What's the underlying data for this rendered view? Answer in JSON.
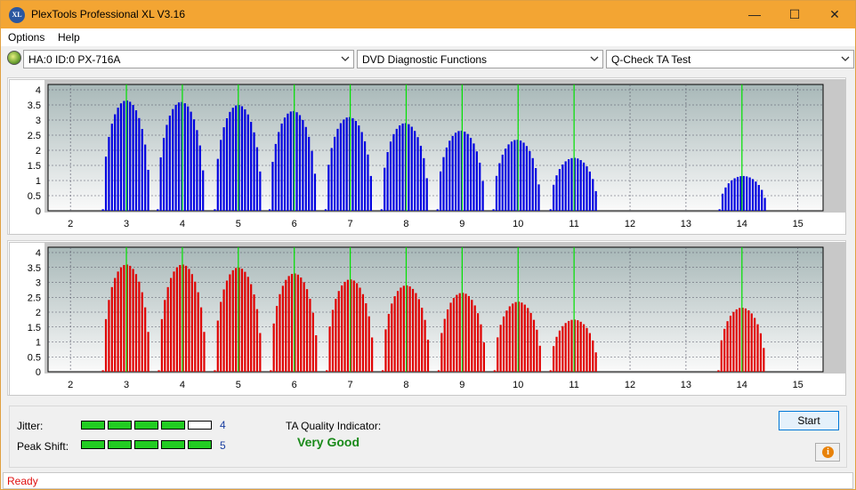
{
  "window": {
    "title": "PlexTools Professional XL V3.16",
    "app_icon": "XL"
  },
  "menu": {
    "items": [
      "Options",
      "Help"
    ]
  },
  "toolbar": {
    "drive": "HA:0 ID:0  PX-716A",
    "function": "DVD Diagnostic Functions",
    "test": "Q-Check TA Test"
  },
  "chart_data": [
    {
      "type": "bar",
      "title": "",
      "color": "#0000e0",
      "xlim": [
        1.6,
        15.45
      ],
      "ylim": [
        0,
        4
      ],
      "xticks": [
        2,
        3,
        4,
        5,
        6,
        7,
        8,
        9,
        10,
        11,
        12,
        13,
        14,
        15
      ],
      "yticks": [
        0,
        0.5,
        1,
        1.5,
        2,
        2.5,
        3,
        3.5,
        4
      ],
      "ytick_labels": [
        "0",
        "0.5",
        "1",
        "1.5",
        "2",
        "2.5",
        "3",
        "3.5",
        "4"
      ],
      "green_markers": [
        3,
        4,
        5,
        6,
        7,
        8,
        9,
        10,
        11,
        14
      ],
      "peaks": [
        {
          "center": 3.0,
          "height": 3.65
        },
        {
          "center": 3.98,
          "height": 3.6
        },
        {
          "center": 5.0,
          "height": 3.5
        },
        {
          "center": 5.98,
          "height": 3.3
        },
        {
          "center": 6.98,
          "height": 3.1
        },
        {
          "center": 7.98,
          "height": 2.9
        },
        {
          "center": 8.98,
          "height": 2.65
        },
        {
          "center": 9.98,
          "height": 2.35
        },
        {
          "center": 11.0,
          "height": 1.75
        },
        {
          "center": 14.02,
          "height": 1.15
        }
      ]
    },
    {
      "type": "bar",
      "title": "",
      "color": "#e00000",
      "xlim": [
        1.6,
        15.45
      ],
      "ylim": [
        0,
        4
      ],
      "xticks": [
        2,
        3,
        4,
        5,
        6,
        7,
        8,
        9,
        10,
        11,
        12,
        13,
        14,
        15
      ],
      "yticks": [
        0,
        0.5,
        1,
        1.5,
        2,
        2.5,
        3,
        3.5,
        4
      ],
      "ytick_labels": [
        "0",
        "0.5",
        "1",
        "1.5",
        "2",
        "2.5",
        "3",
        "3.5",
        "4"
      ],
      "green_markers": [
        3,
        4,
        5,
        6,
        7,
        8,
        9,
        10,
        11,
        14
      ],
      "peaks": [
        {
          "center": 3.0,
          "height": 3.6
        },
        {
          "center": 4.0,
          "height": 3.6
        },
        {
          "center": 5.0,
          "height": 3.5
        },
        {
          "center": 6.0,
          "height": 3.3
        },
        {
          "center": 7.0,
          "height": 3.1
        },
        {
          "center": 8.0,
          "height": 2.9
        },
        {
          "center": 9.0,
          "height": 2.65
        },
        {
          "center": 10.0,
          "height": 2.35
        },
        {
          "center": 11.0,
          "height": 1.75
        },
        {
          "center": 14.0,
          "height": 2.15
        }
      ]
    }
  ],
  "metrics": {
    "jitter_label": "Jitter:",
    "jitter_value": "4",
    "jitter_level": 4,
    "peak_label": "Peak Shift:",
    "peak_value": "5",
    "peak_level": 5,
    "ta_label": "TA Quality Indicator:",
    "ta_value": "Very Good"
  },
  "buttons": {
    "start": "Start"
  },
  "status": {
    "text": "Ready"
  }
}
